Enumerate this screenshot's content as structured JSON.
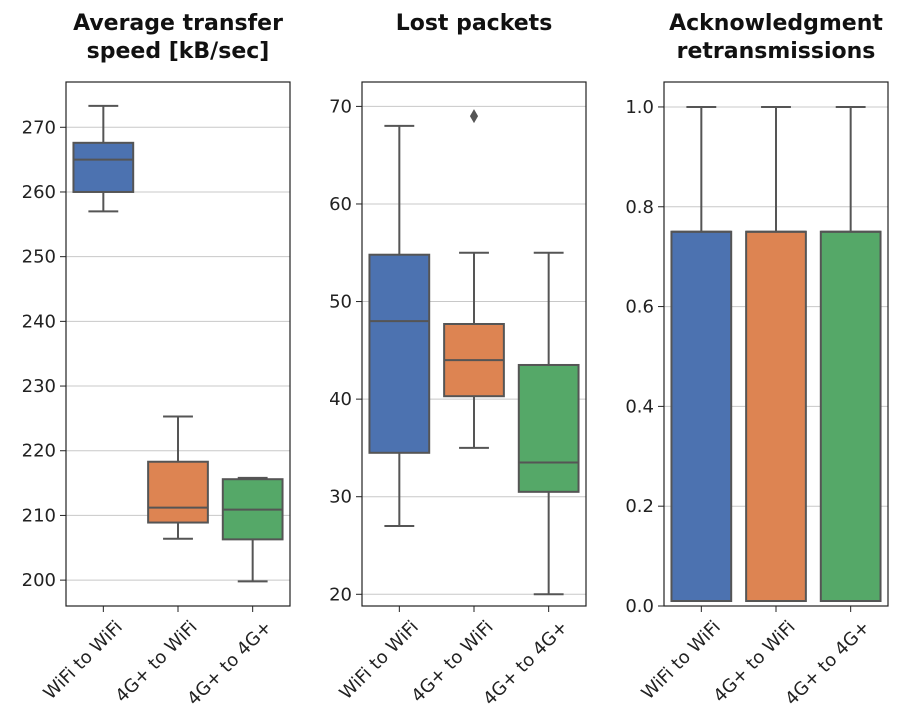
{
  "chart_data": [
    {
      "type": "box",
      "title_lines": [
        "Average transfer",
        "speed [kB/sec]"
      ],
      "categories": [
        "WiFi to WiFi",
        "4G+ to WiFi",
        "4G+ to 4G+"
      ],
      "ylim": [
        196,
        277
      ],
      "yticks": [
        200,
        210,
        220,
        230,
        240,
        250,
        260,
        270
      ],
      "grid": "y",
      "boxes": [
        {
          "category": "WiFi to WiFi",
          "color": "#4c72b0",
          "whisker_low": 257,
          "q1": 260,
          "median": 265,
          "q3": 267.6,
          "whisker_high": 273.3,
          "outliers": []
        },
        {
          "category": "4G+ to WiFi",
          "color": "#dd8452",
          "whisker_low": 206.4,
          "q1": 208.9,
          "median": 211.2,
          "q3": 218.3,
          "whisker_high": 225.3,
          "outliers": []
        },
        {
          "category": "4G+ to 4G+",
          "color": "#55a868",
          "whisker_low": 199.8,
          "q1": 206.3,
          "median": 210.9,
          "q3": 215.6,
          "whisker_high": 215.8,
          "outliers": []
        }
      ]
    },
    {
      "type": "box",
      "title_lines": [
        "Lost packets"
      ],
      "categories": [
        "WiFi to WiFi",
        "4G+ to WiFi",
        "4G+ to 4G+"
      ],
      "ylim": [
        18.8,
        72.5
      ],
      "yticks": [
        20,
        30,
        40,
        50,
        60,
        70
      ],
      "grid": "y",
      "boxes": [
        {
          "category": "WiFi to WiFi",
          "color": "#4c72b0",
          "whisker_low": 27,
          "q1": 34.5,
          "median": 48,
          "q3": 54.8,
          "whisker_high": 68,
          "outliers": []
        },
        {
          "category": "4G+ to WiFi",
          "color": "#dd8452",
          "whisker_low": 35,
          "q1": 40.3,
          "median": 44,
          "q3": 47.7,
          "whisker_high": 55,
          "outliers": [
            69
          ]
        },
        {
          "category": "4G+ to 4G+",
          "color": "#55a868",
          "whisker_low": 20,
          "q1": 30.5,
          "median": 33.5,
          "q3": 43.5,
          "whisker_high": 55,
          "outliers": []
        }
      ]
    },
    {
      "type": "box",
      "title_lines": [
        "Acknowledgment",
        "retransmissions"
      ],
      "categories": [
        "WiFi to WiFi",
        "4G+ to WiFi",
        "4G+ to 4G+"
      ],
      "ylim": [
        0,
        1.05
      ],
      "yticks": [
        "0.0",
        "0.2",
        "0.4",
        "0.6",
        "0.8",
        "1.0"
      ],
      "grid": "y",
      "boxes": [
        {
          "category": "WiFi to WiFi",
          "color": "#4c72b0",
          "whisker_low": 0.01,
          "q1": 0.01,
          "median": 0.75,
          "q3": 0.75,
          "whisker_high": 1.0,
          "outliers": []
        },
        {
          "category": "4G+ to WiFi",
          "color": "#dd8452",
          "whisker_low": 0.01,
          "q1": 0.01,
          "median": 0.75,
          "q3": 0.75,
          "whisker_high": 1.0,
          "outliers": []
        },
        {
          "category": "4G+ to 4G+",
          "color": "#55a868",
          "whisker_low": 0.01,
          "q1": 0.01,
          "median": 0.75,
          "q3": 0.75,
          "whisker_high": 1.0,
          "outliers": []
        }
      ]
    }
  ],
  "style": {
    "grid_color": "#c8c8c8",
    "line_color": "#555555",
    "spine_color": "#222222"
  }
}
